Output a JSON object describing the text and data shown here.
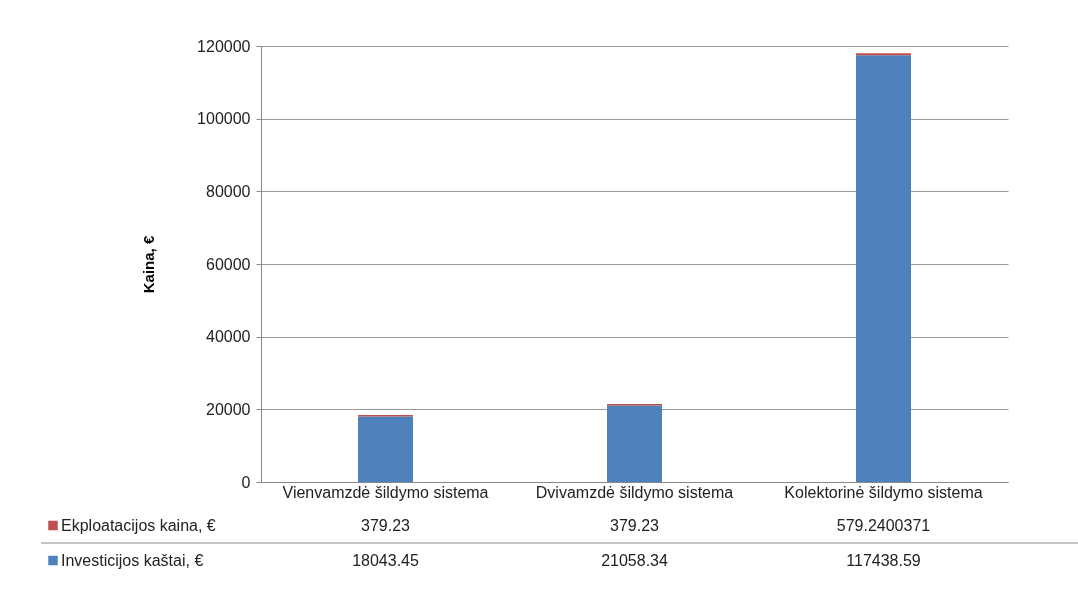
{
  "chart_data": {
    "type": "bar",
    "stacked": true,
    "ylabel": "Kaina, €",
    "categories": [
      "Vienvamzdė šildymo sistema",
      "Dvivamzdė šildymo sistema",
      "Kolektorinė šildymo sistema"
    ],
    "series": [
      {
        "name": "Investicijos kaštai, €",
        "color": "#4f81bd",
        "values": [
          18043.45,
          21058.34,
          117438.59
        ]
      },
      {
        "name": "Ekploatacijos kaina, €",
        "color": "#c0504d",
        "values": [
          379.23,
          379.23,
          579.2400371
        ]
      }
    ],
    "ylim": [
      0,
      120000
    ],
    "yticks": [
      0,
      20000,
      40000,
      60000,
      80000,
      100000,
      120000
    ],
    "grid": "y",
    "legend": "bottom",
    "data_labels": true
  }
}
